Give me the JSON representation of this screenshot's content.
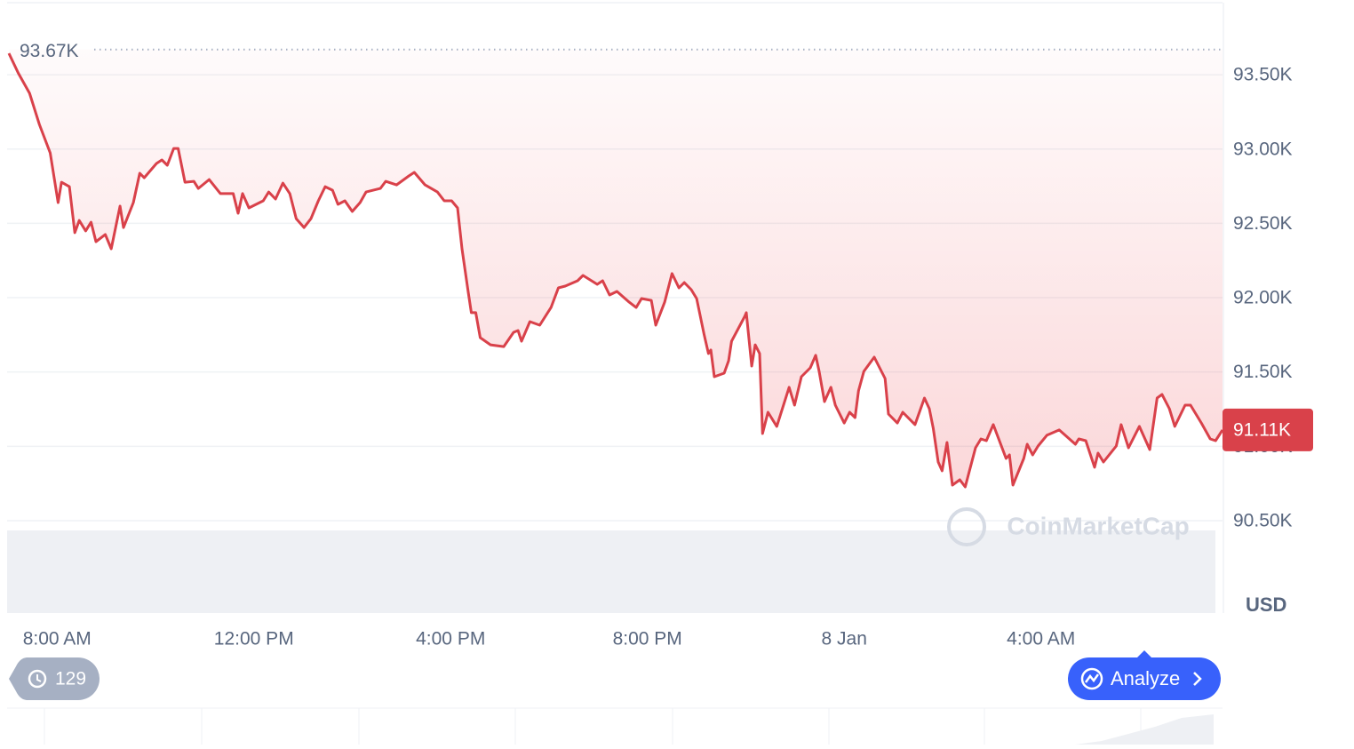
{
  "chart_data": {
    "type": "line",
    "x": [
      7.02,
      7.21,
      7.44,
      7.64,
      7.86,
      8.02,
      8.09,
      8.25,
      8.36,
      8.45,
      8.58,
      8.69,
      8.79,
      8.98,
      9.1,
      9.28,
      9.35,
      9.55,
      9.68,
      9.77,
      10.02,
      10.13,
      10.24,
      10.37,
      10.46,
      10.6,
      10.78,
      10.87,
      11.09,
      11.32,
      11.58,
      11.68,
      11.77,
      11.9,
      12.19,
      12.3,
      12.44,
      12.59,
      12.73,
      12.86,
      13.02,
      13.16,
      13.31,
      13.45,
      13.6,
      13.71,
      13.85,
      14.0,
      14.16,
      14.28,
      14.57,
      14.68,
      14.9,
      15.15,
      15.26,
      15.48,
      15.73,
      15.87,
      16.02,
      16.14,
      16.23,
      16.36,
      16.42,
      16.51,
      16.6,
      16.81,
      17.08,
      17.28,
      17.37,
      17.44,
      17.61,
      17.81,
      18.04,
      18.19,
      18.33,
      18.58,
      18.69,
      18.98,
      19.09,
      19.23,
      19.38,
      19.63,
      19.77,
      19.88,
      20.08,
      20.17,
      20.35,
      20.5,
      20.64,
      20.75,
      20.89,
      21.0,
      21.15,
      21.24,
      21.29,
      21.36,
      21.56,
      21.65,
      21.71,
      21.98,
      22.01,
      22.12,
      22.19,
      22.28,
      22.34,
      22.45,
      22.63,
      22.88,
      22.99,
      23.13,
      23.31,
      23.42,
      23.49,
      23.6,
      23.73,
      23.82,
      24.0,
      24.11,
      24.22,
      24.29,
      24.4,
      24.61,
      24.83,
      24.9,
      25.08,
      25.19,
      25.44,
      25.63,
      25.73,
      25.81,
      25.91,
      25.99,
      26.09,
      26.2,
      26.35,
      26.46,
      26.67,
      26.78,
      26.89,
      27.03,
      27.29,
      27.36,
      27.43,
      27.65,
      27.72,
      27.83,
      27.94,
      28.12,
      28.37,
      28.7,
      28.77,
      28.91,
      29.09,
      29.16,
      29.27,
      29.53,
      29.63,
      29.78,
      30.0,
      30.21,
      30.36,
      30.46,
      30.61,
      30.72,
      30.93,
      31.04,
      31.26,
      31.44,
      31.55,
      31.69
    ],
    "values": [
      93644,
      93512,
      93375,
      93166,
      92974,
      92640,
      92777,
      92747,
      92437,
      92520,
      92449,
      92508,
      92377,
      92425,
      92329,
      92616,
      92472,
      92640,
      92837,
      92807,
      92903,
      92927,
      92891,
      93004,
      93004,
      92777,
      92783,
      92735,
      92795,
      92700,
      92700,
      92568,
      92700,
      92604,
      92652,
      92711,
      92664,
      92771,
      92700,
      92532,
      92472,
      92532,
      92652,
      92747,
      92723,
      92628,
      92652,
      92580,
      92640,
      92711,
      92735,
      92783,
      92759,
      92819,
      92843,
      92759,
      92711,
      92652,
      92652,
      92604,
      92329,
      92030,
      91899,
      91899,
      91731,
      91683,
      91671,
      91767,
      91779,
      91707,
      91839,
      91815,
      91934,
      92066,
      92078,
      92114,
      92150,
      92090,
      92114,
      92018,
      92042,
      91970,
      91934,
      91994,
      91982,
      91815,
      91970,
      92162,
      92066,
      92102,
      92054,
      91994,
      91755,
      91624,
      91648,
      91468,
      91492,
      91576,
      91707,
      91875,
      91899,
      91540,
      91683,
      91624,
      91086,
      91229,
      91134,
      91397,
      91277,
      91468,
      91528,
      91612,
      91504,
      91301,
      91397,
      91277,
      91157,
      91229,
      91193,
      91373,
      91504,
      91600,
      91456,
      91217,
      91157,
      91229,
      91146,
      91325,
      91253,
      91122,
      90894,
      90835,
      91026,
      90739,
      90775,
      90727,
      90990,
      91050,
      91038,
      91146,
      90918,
      90942,
      90739,
      90918,
      91014,
      90942,
      91002,
      91074,
      91110,
      91014,
      91050,
      91038,
      90859,
      90954,
      90894,
      91002,
      91146,
      90990,
      91134,
      90978,
      91325,
      91349,
      91253,
      91134,
      91277,
      91277,
      91157,
      91050,
      91038,
      91110
    ],
    "color": "#d9414a",
    "xlim": [
      7.02,
      31.69
    ],
    "xticks": [
      {
        "value": 8,
        "label": "8:00 AM"
      },
      {
        "value": 12,
        "label": "12:00 PM"
      },
      {
        "value": 16,
        "label": "4:00 PM"
      },
      {
        "value": 20,
        "label": "8:00 PM"
      },
      {
        "value": 24,
        "label": "8 Jan"
      },
      {
        "value": 28,
        "label": "4:00 AM"
      }
    ],
    "ylim": [
      89878,
      93985
    ],
    "yticks": [
      {
        "value": 90500,
        "label": "90.50K"
      },
      {
        "value": 91000,
        "label": "91.00K"
      },
      {
        "value": 91500,
        "label": "91.50K"
      },
      {
        "value": 92000,
        "label": "92.00K"
      },
      {
        "value": 92500,
        "label": "92.50K"
      },
      {
        "value": 93000,
        "label": "93.00K"
      },
      {
        "value": 93500,
        "label": "93.50K"
      }
    ],
    "grid": true,
    "reference_line": {
      "value": 93670,
      "label": "93.67K"
    },
    "last_price": {
      "value": 91110,
      "label": "91.11K"
    },
    "y_axis_label": "USD",
    "watermark": "CoinMarketCap"
  },
  "controls": {
    "history_count": "129",
    "analyze_button": "Analyze"
  }
}
